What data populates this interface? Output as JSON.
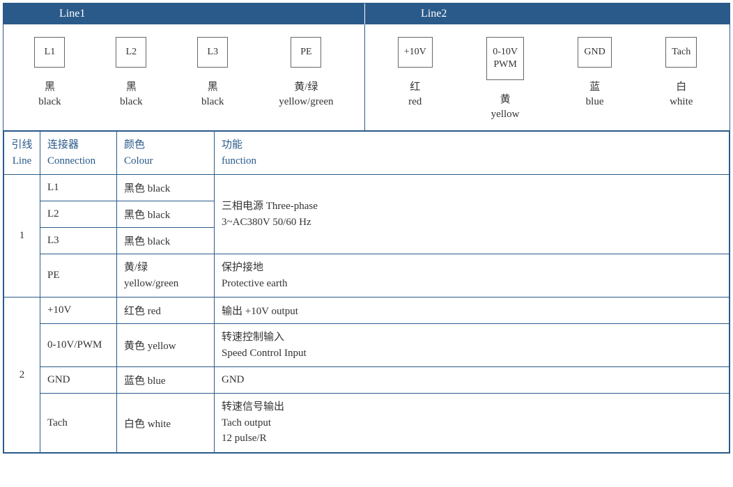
{
  "colors": {
    "header_bg": "#2a5a8a",
    "border": "#2a5a8a",
    "text": "#333333",
    "header_text": "#ffffff",
    "table_header_text": "#2a5a8a"
  },
  "header": {
    "line1": "Line1",
    "line2": "Line2"
  },
  "terminals": {
    "panel1": [
      {
        "box": "L1",
        "cn": "黑",
        "en": "black"
      },
      {
        "box": "L2",
        "cn": "黑",
        "en": "black"
      },
      {
        "box": "L3",
        "cn": "黑",
        "en": "black"
      },
      {
        "box": "PE",
        "cn": "黄/绿",
        "en": "yellow/green"
      }
    ],
    "panel2": [
      {
        "box": "+10V",
        "cn": "红",
        "en": "red"
      },
      {
        "box": "0-10V\nPWM",
        "cn": "黄",
        "en": "yellow"
      },
      {
        "box": "GND",
        "cn": "蓝",
        "en": "blue"
      },
      {
        "box": "Tach",
        "cn": "白",
        "en": "white"
      }
    ]
  },
  "table": {
    "headers": {
      "line_cn": "引线",
      "line_en": "Line",
      "connection_cn": "连接器",
      "connection_en": "Connection",
      "colour_cn": "颜色",
      "colour_en": "Colour",
      "function_cn": "功能",
      "function_en": "function"
    },
    "group1": {
      "line": "1",
      "rows": [
        {
          "conn": "L1",
          "colour": "黑色 black"
        },
        {
          "conn": "L2",
          "colour": "黑色 black"
        },
        {
          "conn": "L3",
          "colour": "黑色 black"
        },
        {
          "conn": "PE",
          "colour": "黄/绿\nyellow/green"
        }
      ],
      "func_phase_cn": "三相电源 Three-phase",
      "func_phase_en": "3~AC380V 50/60 Hz",
      "func_pe_cn": "保护接地",
      "func_pe_en": "Protective earth"
    },
    "group2": {
      "line": "2",
      "rows": [
        {
          "conn": "+10V",
          "colour": "红色 red",
          "func": "输出 +10V output"
        },
        {
          "conn": "0-10V/PWM",
          "colour": "黄色 yellow",
          "func_cn": "转速控制输入",
          "func_en": "Speed Control Input"
        },
        {
          "conn": "GND",
          "colour": "蓝色 blue",
          "func": "GND"
        },
        {
          "conn": "Tach",
          "colour": "白色 white",
          "func_cn": "转速信号输出",
          "func_en1": "Tach output",
          "func_en2": "12 pulse/R"
        }
      ]
    }
  }
}
